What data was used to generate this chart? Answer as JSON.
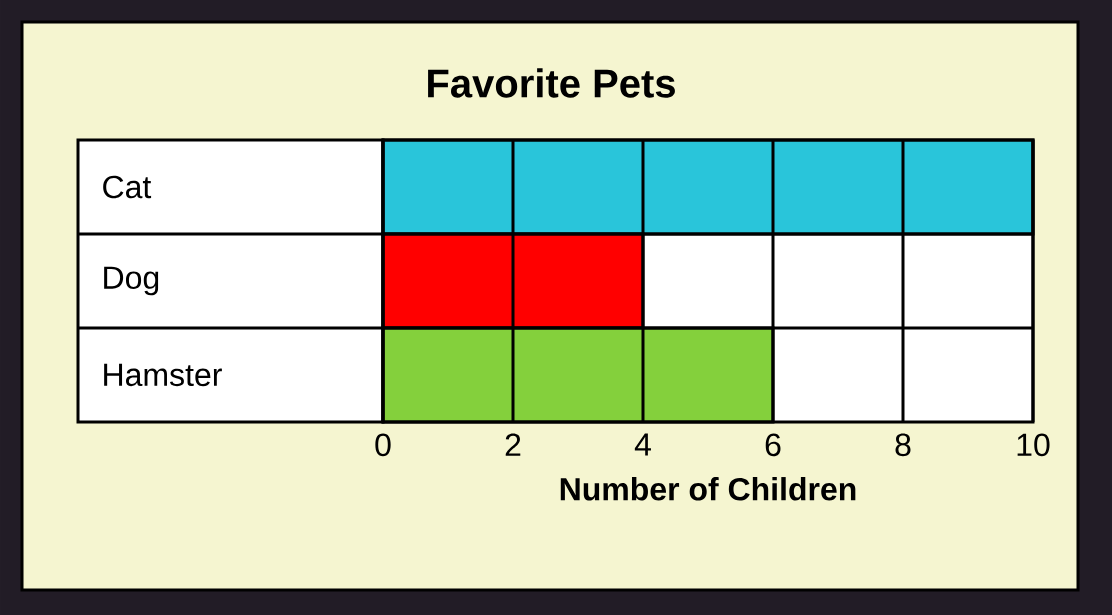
{
  "chart_data": {
    "type": "bar",
    "orientation": "horizontal",
    "title": "Favorite Pets",
    "xlabel": "Number of Children",
    "categories": [
      "Cat",
      "Dog",
      "Hamster"
    ],
    "values": [
      10,
      4,
      6
    ],
    "colors": [
      "#29c5da",
      "#ff0000",
      "#84d03c"
    ],
    "xlim": [
      0,
      10
    ],
    "xticks": [
      0,
      2,
      4,
      6,
      8,
      10
    ],
    "grid": true
  }
}
